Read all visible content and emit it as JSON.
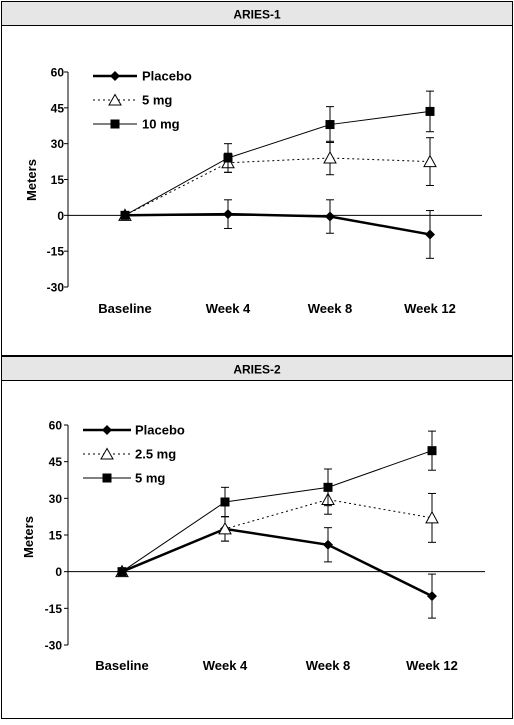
{
  "chart_data": [
    {
      "type": "line",
      "title": "ARIES-1",
      "ylabel": "Meters",
      "xlabel": "",
      "ylim": [
        -30,
        60
      ],
      "yticks": [
        60,
        45,
        30,
        15,
        0,
        -15,
        -30
      ],
      "categories": [
        "Baseline",
        "Week 4",
        "Week 8",
        "Week 12"
      ],
      "legend_position": "top-left",
      "grid": false,
      "series": [
        {
          "name": "Placebo",
          "marker": "diamond",
          "line": "solid-bold",
          "values": [
            0,
            0.5,
            -0.5,
            -8
          ],
          "error": [
            0,
            6,
            7,
            10
          ]
        },
        {
          "name": "5 mg",
          "marker": "open-triangle",
          "line": "dotted",
          "values": [
            0,
            22,
            24,
            22.5
          ],
          "error": [
            0,
            4,
            7,
            10
          ]
        },
        {
          "name": "10 mg",
          "marker": "square",
          "line": "solid",
          "values": [
            0,
            24,
            38,
            43.5
          ],
          "error": [
            0,
            6,
            7.5,
            8.5
          ]
        }
      ]
    },
    {
      "type": "line",
      "title": "ARIES-2",
      "ylabel": "Meters",
      "xlabel": "",
      "ylim": [
        -30,
        60
      ],
      "yticks": [
        60,
        45,
        30,
        15,
        0,
        -15,
        -30
      ],
      "categories": [
        "Baseline",
        "Week 4",
        "Week 8",
        "Week 12"
      ],
      "legend_position": "top-left",
      "grid": false,
      "series": [
        {
          "name": "Placebo",
          "marker": "diamond",
          "line": "solid-bold",
          "values": [
            0,
            17.5,
            11,
            -10
          ],
          "error": [
            0,
            5,
            7,
            9
          ]
        },
        {
          "name": "2.5 mg",
          "marker": "open-triangle",
          "line": "dotted",
          "values": [
            0,
            17.5,
            29.5,
            22
          ],
          "error": [
            0,
            5,
            6,
            10
          ]
        },
        {
          "name": "5 mg",
          "marker": "square",
          "line": "solid",
          "values": [
            0,
            28.5,
            34.5,
            49.5
          ],
          "error": [
            0,
            6,
            7.5,
            8
          ]
        }
      ]
    }
  ]
}
